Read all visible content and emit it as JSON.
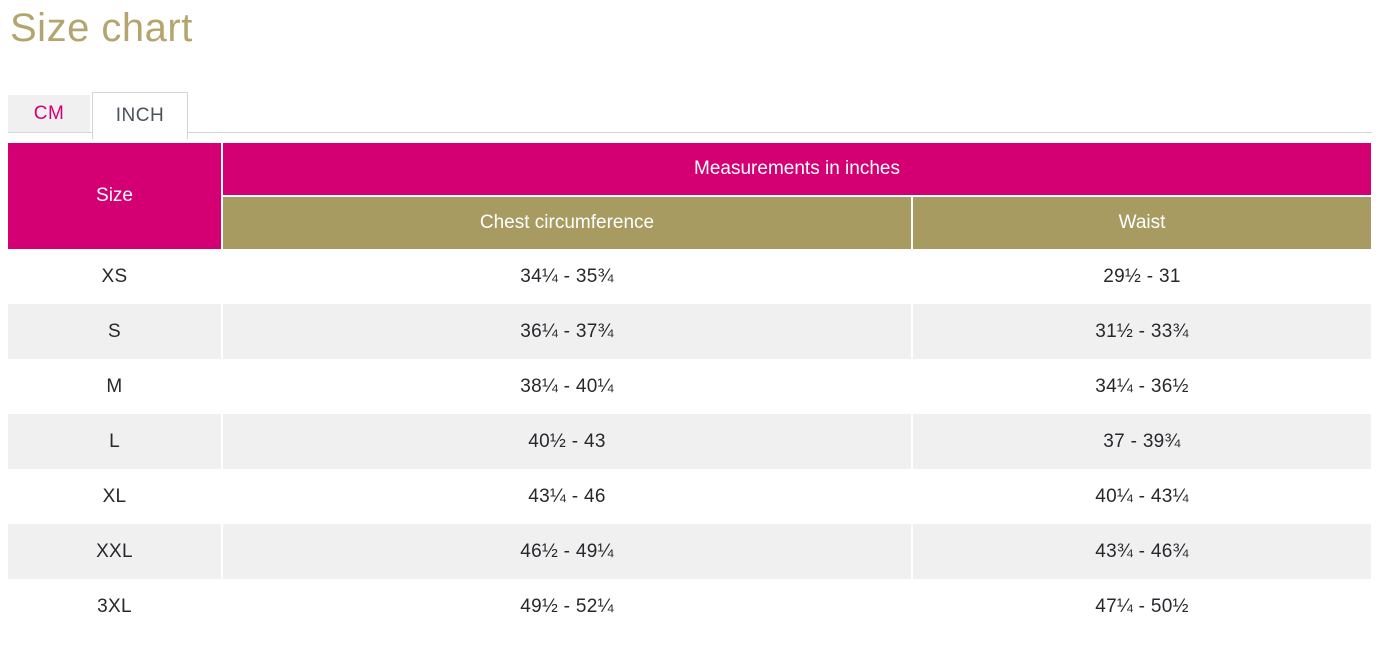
{
  "page": {
    "title": "Size chart"
  },
  "tabs": {
    "cm_label": "CM",
    "inch_label": "INCH",
    "active": "INCH"
  },
  "table": {
    "size_header": "Size",
    "group_header": "Measurements in inches",
    "columns": {
      "chest": "Chest circumference",
      "waist": "Waist"
    },
    "rows": [
      {
        "size": "XS",
        "chest": "34¼ - 35¾",
        "waist": "29½  - 31"
      },
      {
        "size": "S",
        "chest": "36¼ - 37¾",
        "waist": "31½  - 33¾"
      },
      {
        "size": "M",
        "chest": "38¼ - 40¼",
        "waist": "34¼ - 36½"
      },
      {
        "size": "L",
        "chest": "40½  - 43",
        "waist": "37 - 39¾"
      },
      {
        "size": "XL",
        "chest": "43¼ - 46",
        "waist": "40¼ - 43¼"
      },
      {
        "size": "XXL",
        "chest": "46½  - 49¼",
        "waist": "43¾ - 46¾"
      },
      {
        "size": "3XL",
        "chest": "49½  - 52¼",
        "waist": "47¼ - 50½"
      }
    ]
  },
  "colors": {
    "accent_pink": "#d40073",
    "accent_gold": "#a79b61",
    "title_gold": "#b4a56e",
    "stripe_gray": "#f0f0f0",
    "tab_border_gray": "#d5d5d5",
    "inactive_tab_text": "#4a525a"
  }
}
